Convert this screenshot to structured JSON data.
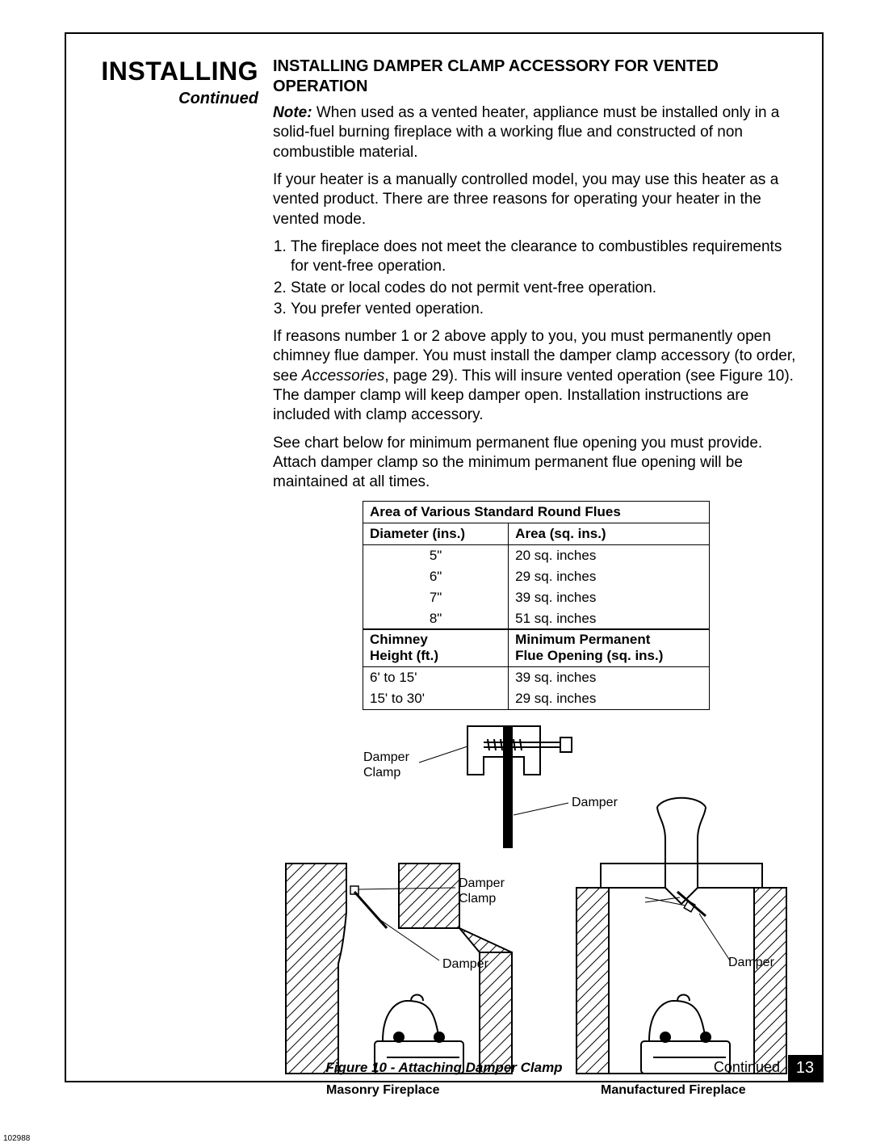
{
  "leftcol": {
    "title": "INSTALLING",
    "continued": "Continued"
  },
  "section": {
    "title": "INSTALLING DAMPER CLAMP ACCESSORY FOR VENTED OPERATION",
    "note_label": "Note:",
    "note_text": " When used as a vented heater, appliance must be installed only in a solid-fuel burning fireplace with a working flue and constructed of non combustible material.",
    "p1": "If your heater is a manually controlled model, you may use this heater as a vented product. There are three reasons for operating your heater in the vented mode.",
    "list": [
      "The fireplace does not meet the clearance to combustibles requirements for vent-free operation.",
      "State or local codes do not permit vent-free operation.",
      "You prefer vented operation."
    ],
    "p2a": "If reasons number 1 or 2 above apply to you, you must permanently open chimney flue damper. You must install the damper clamp accessory (to order, see ",
    "p2b": "Accessories",
    "p2c": ", page 29). This will insure vented operation (see Figure 10). The damper clamp will keep damper open. Installation instructions are included with clamp accessory.",
    "p3": "See chart below for minimum permanent flue opening you must provide. Attach damper clamp so the minimum permanent flue opening will be maintained at all times."
  },
  "table1": {
    "caption": "Area of Various Standard Round Flues",
    "h1": "Diameter (ins.)",
    "h2": "Area (sq. ins.)",
    "rows": [
      [
        "5\"",
        "20 sq. inches"
      ],
      [
        "6\"",
        "29 sq. inches"
      ],
      [
        "7\"",
        "39 sq. inches"
      ],
      [
        "8\"",
        "51 sq. inches"
      ]
    ]
  },
  "table2": {
    "h1a": "Chimney",
    "h1b": "Height (ft.)",
    "h2a": "Minimum Permanent",
    "h2b": "Flue Opening (sq. ins.)",
    "rows": [
      [
        "6' to 15'",
        "39 sq. inches"
      ],
      [
        "15' to 30'",
        "29 sq. inches"
      ]
    ]
  },
  "diagram": {
    "damper_clamp": "Damper\nClamp",
    "damper": "Damper",
    "masonry": "Masonry Fireplace",
    "manufactured": "Manufactured Fireplace",
    "caption": "Figure 10 - Attaching Damper Clamp"
  },
  "footer": {
    "continued": "Continued",
    "page": "13",
    "docid": "102988"
  },
  "colors": {
    "black": "#000000",
    "white": "#ffffff"
  }
}
